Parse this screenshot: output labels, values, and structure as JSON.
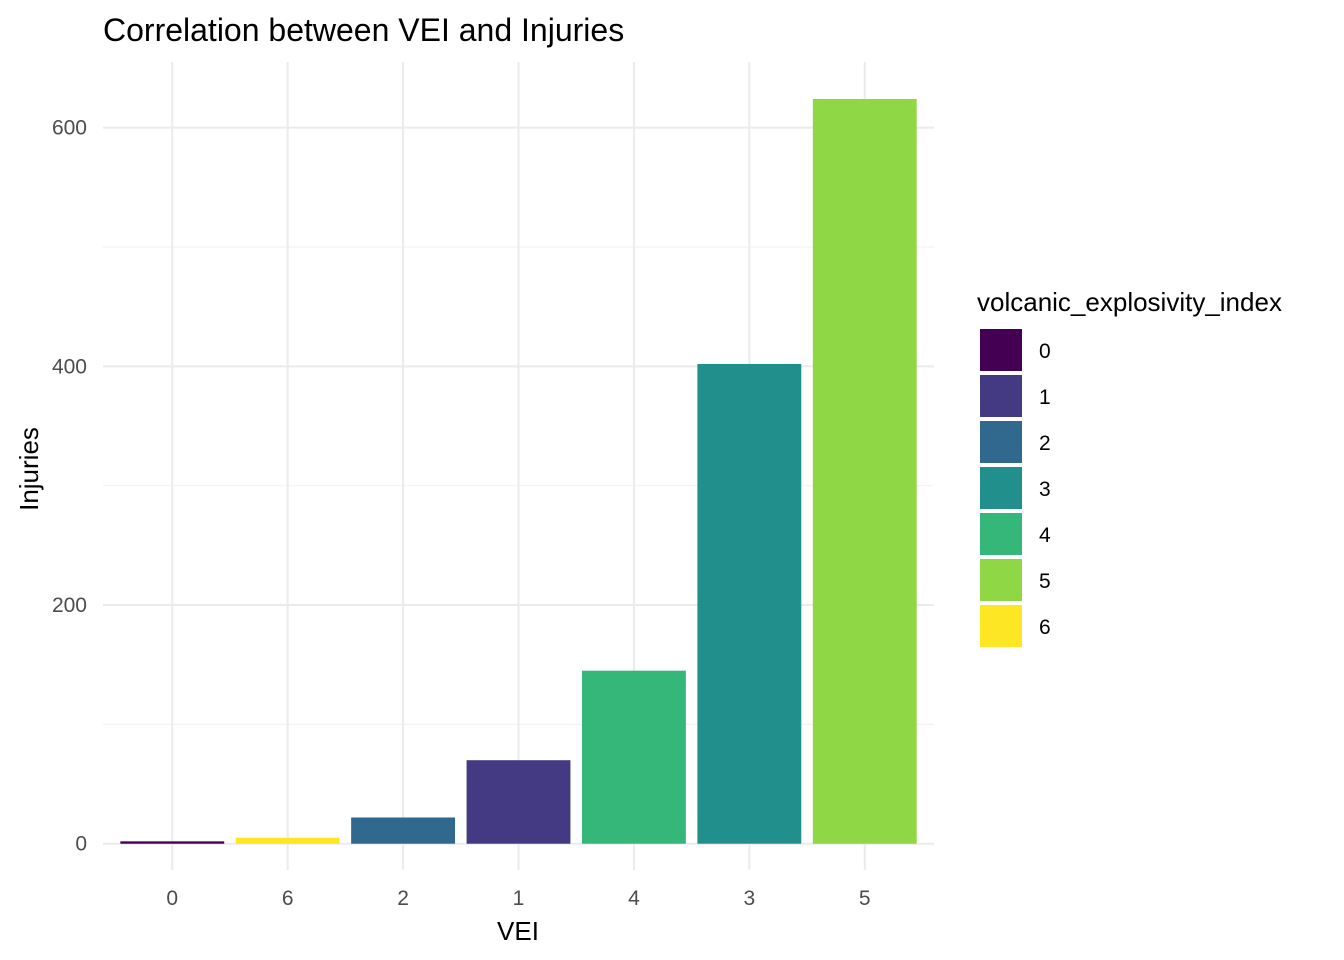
{
  "chart_data": {
    "type": "bar",
    "title": "Correlation between VEI and Injuries",
    "xlabel": "VEI",
    "ylabel": "Injuries",
    "categories": [
      "0",
      "6",
      "2",
      "1",
      "4",
      "3",
      "5"
    ],
    "values": [
      2,
      5,
      22,
      70,
      145,
      402,
      624
    ],
    "fill_keys": [
      "0",
      "6",
      "2",
      "1",
      "4",
      "3",
      "5"
    ],
    "ylim": [
      -22,
      655
    ],
    "y_ticks": [
      0,
      200,
      400,
      600
    ],
    "y_minor_ticks": [
      100,
      300,
      500
    ],
    "grid": true,
    "legend": {
      "title": "volcanic_explosivity_index",
      "position": "right",
      "entries": [
        {
          "label": "0",
          "color": "#440154"
        },
        {
          "label": "1",
          "color": "#443A83"
        },
        {
          "label": "2",
          "color": "#31688E"
        },
        {
          "label": "3",
          "color": "#21908C"
        },
        {
          "label": "4",
          "color": "#35B779"
        },
        {
          "label": "5",
          "color": "#8FD744"
        },
        {
          "label": "6",
          "color": "#FDE725"
        }
      ]
    }
  }
}
